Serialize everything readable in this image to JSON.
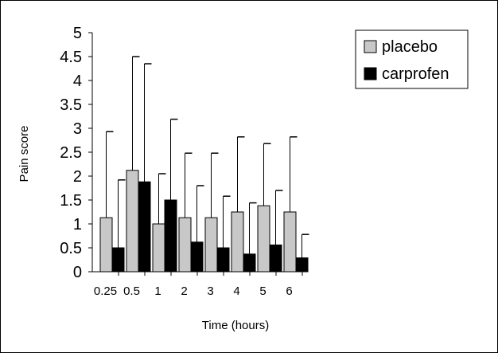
{
  "chart_data": {
    "type": "bar",
    "title": "",
    "xlabel": "Time (hours)",
    "ylabel": "Pain score",
    "ylim": [
      0,
      5
    ],
    "yticks": [
      "0",
      "0.5",
      "1",
      "1.5",
      "2",
      "2.5",
      "3",
      "3.5",
      "4",
      "4.5",
      "5"
    ],
    "categories": [
      "0.25",
      "0.5",
      "1",
      "2",
      "3",
      "4",
      "5",
      "6"
    ],
    "series": [
      {
        "name": "placebo",
        "color": "#c8c8c8",
        "values": [
          1.13,
          2.12,
          1.0,
          1.13,
          1.13,
          1.25,
          1.38,
          1.25
        ],
        "error_upper": [
          2.93,
          4.5,
          2.05,
          2.48,
          2.48,
          2.82,
          2.68,
          2.82
        ]
      },
      {
        "name": "carprofen",
        "color": "#000000",
        "values": [
          0.5,
          1.88,
          1.5,
          0.62,
          0.5,
          0.37,
          0.56,
          0.29
        ],
        "error_upper": [
          1.92,
          4.35,
          3.19,
          1.8,
          1.58,
          1.44,
          1.7,
          0.78
        ]
      }
    ],
    "legend_position": "top-right",
    "grid": false,
    "error_bars": "upper only"
  }
}
